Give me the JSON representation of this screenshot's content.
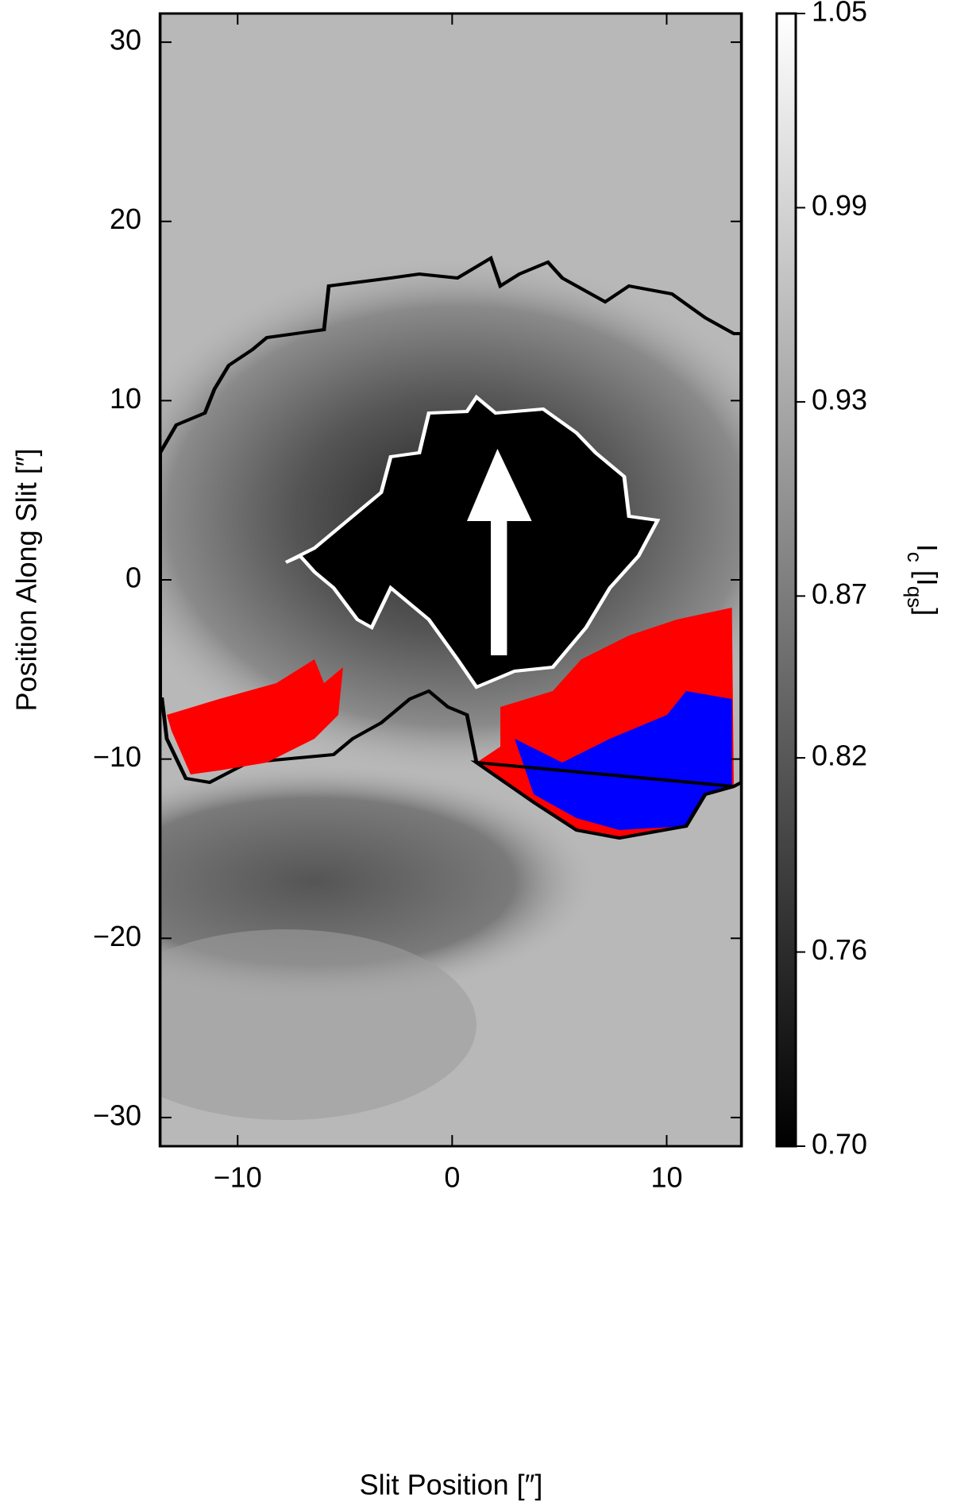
{
  "chart_data": {
    "type": "heatmap",
    "x_label": "Slit Position [″]",
    "y_label": "Position Along Slit [″]",
    "xlim": [
      -13.6,
      13.5
    ],
    "ylim": [
      -31.6,
      31.6
    ],
    "xticks": [
      {
        "value": -10,
        "label": "−10"
      },
      0,
      10
    ],
    "yticks": [
      {
        "value": -30,
        "label": "−30"
      },
      {
        "value": -20,
        "label": "−20"
      },
      {
        "value": -10,
        "label": "−10"
      },
      0,
      10,
      20,
      30
    ],
    "colorbar": {
      "label": [
        "I",
        "c",
        " [I",
        "qs",
        "]"
      ],
      "lim": [
        0.7,
        1.05
      ],
      "ticks": [
        {
          "value": 0.7,
          "label": "0.70"
        },
        0.76,
        0.82,
        0.87,
        0.93,
        0.99,
        1.05
      ],
      "colors": [
        "#000000",
        "#ffffff"
      ]
    }
  }
}
